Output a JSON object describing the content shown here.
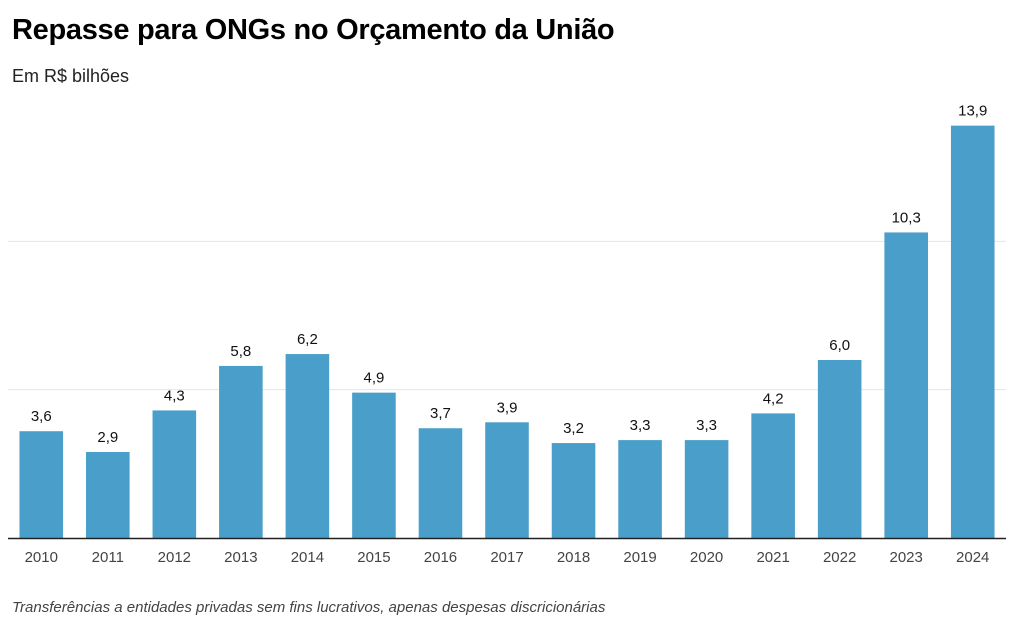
{
  "title": "Repasse para ONGs no Orçamento da União",
  "subtitle": "Em R$ bilhões",
  "note": "Transferências a entidades privadas sem fins lucrativos, apenas despesas discricionárias",
  "colors": {
    "bar": "#4a9fca",
    "grid": "#e4e4e4",
    "axis": "#222222"
  },
  "chart_data": {
    "type": "bar",
    "categories": [
      "2010",
      "2011",
      "2012",
      "2013",
      "2014",
      "2015",
      "2016",
      "2017",
      "2018",
      "2019",
      "2020",
      "2021",
      "2022",
      "2023",
      "2024"
    ],
    "values": [
      3.6,
      2.9,
      4.3,
      5.8,
      6.2,
      4.9,
      3.7,
      3.9,
      3.2,
      3.3,
      3.3,
      4.2,
      6.0,
      10.3,
      13.9
    ],
    "value_labels": [
      "3,6",
      "2,9",
      "4,3",
      "5,8",
      "6,2",
      "4,9",
      "3,7",
      "3,9",
      "3,2",
      "3,3",
      "3,3",
      "4,2",
      "6,0",
      "10,3",
      "13,9"
    ],
    "ylim": [
      0,
      15
    ],
    "gridlines": [
      5,
      10
    ],
    "grid": true,
    "xlabel": "",
    "ylabel": ""
  }
}
